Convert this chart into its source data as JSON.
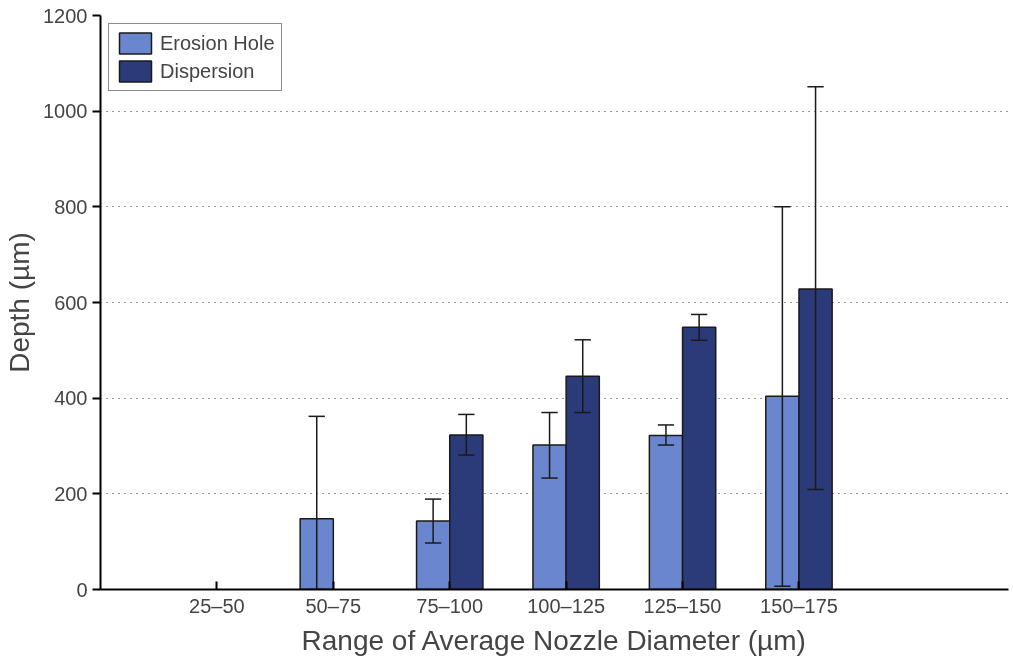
{
  "chart_data": {
    "type": "bar",
    "xlabel": "Range of Average Nozzle Diameter (µm)",
    "ylabel": "Depth (µm)",
    "categories": [
      "25–50",
      "50–75",
      "75–100",
      "100–125",
      "125–150",
      "150–175"
    ],
    "series": [
      {
        "name": "Erosion Hole",
        "color": "#6a86cf",
        "values": [
          null,
          148,
          143,
          302,
          322,
          404
        ],
        "errors": [
          null,
          [
            0,
            362
          ],
          [
            97,
            189
          ],
          [
            233,
            370
          ],
          [
            302,
            344
          ],
          [
            7,
            800
          ]
        ]
      },
      {
        "name": "Dispersion",
        "color": "#2b3a78",
        "values": [
          null,
          null,
          323,
          446,
          548,
          628
        ],
        "errors": [
          null,
          null,
          [
            281,
            366
          ],
          [
            370,
            522
          ],
          [
            521,
            575
          ],
          [
            209,
            1051
          ]
        ]
      }
    ],
    "ylim": [
      0,
      1200
    ],
    "yticks": [
      0,
      200,
      400,
      600,
      800,
      1000,
      1200
    ],
    "grid": "y",
    "legend": "top left"
  }
}
